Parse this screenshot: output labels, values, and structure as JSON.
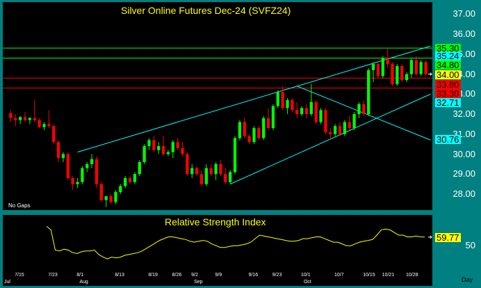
{
  "chart_data": [
    {
      "type": "candlestick",
      "title": "Silver Online Futures Dec-24 (SVFZ24)",
      "note": "No Gaps",
      "ylim": [
        27.2,
        37.6
      ],
      "y_ticks": [
        "37.00",
        "36.00",
        "35.00",
        "34.00",
        "33.00",
        "32.00",
        "31.00",
        "30.00",
        "29.00",
        "28.00"
      ],
      "x_ticks": [
        "7/15",
        "7/23",
        "8/1",
        "8/13",
        "8/19",
        "8/26",
        "9/2",
        "9/9",
        "9/16",
        "9/23",
        "10/1",
        "10/7",
        "10/15",
        "10/21",
        "10/28"
      ],
      "x_months": [
        "Jul",
        "Aug",
        "Sep",
        "Oct"
      ],
      "series": [
        {
          "type": "candles",
          "values": [
            {
              "o": 32.05,
              "h": 32.2,
              "l": 31.6,
              "c": 31.8
            },
            {
              "o": 31.8,
              "h": 32.0,
              "l": 31.4,
              "c": 31.7
            },
            {
              "o": 31.7,
              "h": 31.9,
              "l": 31.5,
              "c": 31.85
            },
            {
              "o": 31.85,
              "h": 32.1,
              "l": 31.6,
              "c": 31.7
            },
            {
              "o": 31.7,
              "h": 31.85,
              "l": 31.5,
              "c": 31.8
            },
            {
              "o": 31.8,
              "h": 32.7,
              "l": 31.6,
              "c": 31.7
            },
            {
              "o": 31.7,
              "h": 31.8,
              "l": 31.3,
              "c": 31.35
            },
            {
              "o": 31.35,
              "h": 31.6,
              "l": 31.2,
              "c": 31.5
            },
            {
              "o": 31.5,
              "h": 32.2,
              "l": 31.3,
              "c": 31.4
            },
            {
              "o": 31.4,
              "h": 31.5,
              "l": 30.5,
              "c": 30.6
            },
            {
              "o": 30.6,
              "h": 30.7,
              "l": 29.6,
              "c": 29.8
            },
            {
              "o": 29.8,
              "h": 30.1,
              "l": 29.6,
              "c": 30.0
            },
            {
              "o": 30.0,
              "h": 30.1,
              "l": 28.7,
              "c": 28.8
            },
            {
              "o": 28.8,
              "h": 28.9,
              "l": 28.2,
              "c": 28.5
            },
            {
              "o": 28.5,
              "h": 28.8,
              "l": 28.3,
              "c": 28.6
            },
            {
              "o": 28.6,
              "h": 29.4,
              "l": 28.5,
              "c": 29.3
            },
            {
              "o": 29.3,
              "h": 29.6,
              "l": 29.1,
              "c": 29.5
            },
            {
              "o": 29.5,
              "h": 30.0,
              "l": 29.3,
              "c": 29.75
            },
            {
              "o": 29.75,
              "h": 29.9,
              "l": 28.3,
              "c": 28.5
            },
            {
              "o": 28.5,
              "h": 28.6,
              "l": 27.6,
              "c": 27.7
            },
            {
              "o": 27.7,
              "h": 27.9,
              "l": 27.35,
              "c": 27.9
            },
            {
              "o": 27.9,
              "h": 28.0,
              "l": 27.5,
              "c": 27.6
            },
            {
              "o": 27.6,
              "h": 28.2,
              "l": 27.5,
              "c": 28.1
            },
            {
              "o": 28.1,
              "h": 28.5,
              "l": 28.0,
              "c": 28.4
            },
            {
              "o": 28.4,
              "h": 28.9,
              "l": 28.3,
              "c": 28.8
            },
            {
              "o": 28.8,
              "h": 28.9,
              "l": 28.5,
              "c": 28.6
            },
            {
              "o": 28.6,
              "h": 29.1,
              "l": 28.5,
              "c": 29.0
            },
            {
              "o": 29.0,
              "h": 29.7,
              "l": 28.9,
              "c": 29.6
            },
            {
              "o": 29.6,
              "h": 30.5,
              "l": 29.5,
              "c": 30.4
            },
            {
              "o": 30.4,
              "h": 30.8,
              "l": 30.2,
              "c": 30.7
            },
            {
              "o": 30.7,
              "h": 30.9,
              "l": 30.1,
              "c": 30.2
            },
            {
              "o": 30.2,
              "h": 30.6,
              "l": 30.0,
              "c": 30.4
            },
            {
              "o": 30.4,
              "h": 30.9,
              "l": 29.9,
              "c": 30.0
            },
            {
              "o": 30.0,
              "h": 30.2,
              "l": 29.9,
              "c": 30.1
            },
            {
              "o": 30.1,
              "h": 30.7,
              "l": 29.8,
              "c": 30.6
            },
            {
              "o": 30.6,
              "h": 30.8,
              "l": 30.2,
              "c": 30.3
            },
            {
              "o": 30.3,
              "h": 30.6,
              "l": 29.9,
              "c": 30.0
            },
            {
              "o": 30.0,
              "h": 30.1,
              "l": 28.9,
              "c": 29.0
            },
            {
              "o": 29.0,
              "h": 29.5,
              "l": 28.8,
              "c": 29.3
            },
            {
              "o": 29.3,
              "h": 29.4,
              "l": 28.9,
              "c": 29.0
            },
            {
              "o": 29.0,
              "h": 29.2,
              "l": 28.4,
              "c": 28.5
            },
            {
              "o": 28.5,
              "h": 29.5,
              "l": 28.4,
              "c": 29.3
            },
            {
              "o": 29.3,
              "h": 29.5,
              "l": 28.9,
              "c": 29.0
            },
            {
              "o": 29.0,
              "h": 29.6,
              "l": 28.7,
              "c": 29.5
            },
            {
              "o": 29.5,
              "h": 29.7,
              "l": 28.9,
              "c": 29.0
            },
            {
              "o": 29.0,
              "h": 29.3,
              "l": 28.5,
              "c": 28.6
            },
            {
              "o": 28.6,
              "h": 29.2,
              "l": 28.5,
              "c": 29.1
            },
            {
              "o": 29.1,
              "h": 30.9,
              "l": 29.0,
              "c": 30.8
            },
            {
              "o": 30.8,
              "h": 31.7,
              "l": 30.7,
              "c": 31.6
            },
            {
              "o": 31.6,
              "h": 31.8,
              "l": 30.8,
              "c": 30.9
            },
            {
              "o": 30.9,
              "h": 31.0,
              "l": 30.5,
              "c": 30.6
            },
            {
              "o": 30.6,
              "h": 31.4,
              "l": 30.5,
              "c": 31.3
            },
            {
              "o": 31.3,
              "h": 31.4,
              "l": 30.7,
              "c": 30.8
            },
            {
              "o": 30.8,
              "h": 31.9,
              "l": 30.7,
              "c": 31.8
            },
            {
              "o": 31.8,
              "h": 32.3,
              "l": 31.2,
              "c": 31.3
            },
            {
              "o": 31.3,
              "h": 32.5,
              "l": 31.2,
              "c": 32.4
            },
            {
              "o": 32.4,
              "h": 33.2,
              "l": 32.3,
              "c": 33.1
            },
            {
              "o": 33.1,
              "h": 33.4,
              "l": 32.2,
              "c": 32.3
            },
            {
              "o": 32.3,
              "h": 32.8,
              "l": 32.0,
              "c": 32.7
            },
            {
              "o": 32.7,
              "h": 32.8,
              "l": 32.1,
              "c": 32.2
            },
            {
              "o": 32.2,
              "h": 32.6,
              "l": 31.8,
              "c": 32.0
            },
            {
              "o": 32.0,
              "h": 32.4,
              "l": 31.9,
              "c": 32.3
            },
            {
              "o": 32.3,
              "h": 32.5,
              "l": 31.8,
              "c": 32.0
            },
            {
              "o": 32.0,
              "h": 33.5,
              "l": 31.9,
              "c": 32.6
            },
            {
              "o": 32.6,
              "h": 32.7,
              "l": 31.5,
              "c": 31.6
            },
            {
              "o": 31.6,
              "h": 32.3,
              "l": 31.5,
              "c": 32.2
            },
            {
              "o": 32.2,
              "h": 32.3,
              "l": 31.0,
              "c": 31.1
            },
            {
              "o": 31.1,
              "h": 31.3,
              "l": 30.7,
              "c": 31.0
            },
            {
              "o": 31.0,
              "h": 31.5,
              "l": 30.9,
              "c": 31.4
            },
            {
              "o": 31.4,
              "h": 31.6,
              "l": 30.9,
              "c": 31.0
            },
            {
              "o": 31.0,
              "h": 31.7,
              "l": 30.9,
              "c": 31.6
            },
            {
              "o": 31.6,
              "h": 31.9,
              "l": 31.2,
              "c": 31.3
            },
            {
              "o": 31.3,
              "h": 32.1,
              "l": 31.2,
              "c": 32.0
            },
            {
              "o": 32.0,
              "h": 32.6,
              "l": 31.8,
              "c": 32.5
            },
            {
              "o": 32.5,
              "h": 32.7,
              "l": 31.9,
              "c": 32.0
            },
            {
              "o": 32.0,
              "h": 34.3,
              "l": 31.9,
              "c": 34.2
            },
            {
              "o": 34.2,
              "h": 34.6,
              "l": 33.6,
              "c": 34.5
            },
            {
              "o": 34.5,
              "h": 34.7,
              "l": 33.8,
              "c": 33.9
            },
            {
              "o": 33.9,
              "h": 34.9,
              "l": 33.8,
              "c": 34.8
            },
            {
              "o": 34.8,
              "h": 35.3,
              "l": 34.3,
              "c": 34.5
            },
            {
              "o": 34.5,
              "h": 34.6,
              "l": 33.4,
              "c": 33.5
            },
            {
              "o": 33.5,
              "h": 34.5,
              "l": 33.4,
              "c": 34.4
            },
            {
              "o": 34.4,
              "h": 34.5,
              "l": 33.6,
              "c": 33.7
            },
            {
              "o": 33.7,
              "h": 34.1,
              "l": 33.6,
              "c": 34.0
            },
            {
              "o": 34.0,
              "h": 34.8,
              "l": 33.8,
              "c": 34.7
            },
            {
              "o": 34.7,
              "h": 34.9,
              "l": 33.9,
              "c": 34.0
            },
            {
              "o": 34.0,
              "h": 34.7,
              "l": 33.9,
              "c": 34.6
            },
            {
              "o": 34.6,
              "h": 34.7,
              "l": 33.9,
              "c": 34.0
            }
          ]
        },
        {
          "type": "hline",
          "value": 35.3,
          "color": "#00ff00"
        },
        {
          "type": "hline",
          "value": 34.8,
          "color": "#00ff00"
        },
        {
          "type": "hline",
          "value": 33.8,
          "color": "#ff0000"
        },
        {
          "type": "hline",
          "value": 33.3,
          "color": "#ff0000"
        }
      ],
      "trendlines": [
        {
          "from": [
            14,
            30.1
          ],
          "to": [
            88,
            35.4
          ],
          "color": "#00ffff"
        },
        {
          "from": [
            46,
            28.5
          ],
          "to": [
            88,
            33.0
          ],
          "color": "#00ffff"
        },
        {
          "from": [
            60,
            33.4
          ],
          "to": [
            88,
            30.7
          ],
          "color": "#00ffff"
        }
      ],
      "price_flags": [
        {
          "label": "35.30",
          "value": 35.3,
          "bg": "#00ff00",
          "fg": "#000000"
        },
        {
          "label": "35.24",
          "value": 34.93,
          "bg": "#00ffff",
          "fg": "#000000"
        },
        {
          "label": "34.80",
          "value": 34.46,
          "bg": "#00ff00",
          "fg": "#000000"
        },
        {
          "label": "34.00",
          "value": 33.97,
          "bg": "#ffff00",
          "fg": "#000000"
        },
        {
          "label": "33.80",
          "value": 33.49,
          "bg": "#ff0000",
          "fg": "#000000"
        },
        {
          "label": "33.30",
          "value": 33.03,
          "bg": "#ff0000",
          "fg": "#000000"
        },
        {
          "label": "32.71",
          "value": 32.58,
          "bg": "#00ffff",
          "fg": "#000000"
        },
        {
          "label": "30.76",
          "value": 30.76,
          "bg": "#00ffff",
          "fg": "#000000"
        }
      ],
      "colors": {
        "up": "#00ff00",
        "down": "#ff0000",
        "axis": "#ffffff",
        "title": "#ffff00"
      }
    },
    {
      "type": "line",
      "title": "Relative Strength Index",
      "ylim": [
        20,
        85
      ],
      "y_ticks": [
        "50"
      ],
      "last_value": "59.77",
      "series": [
        {
          "values": [
            72,
            68,
            45,
            44,
            46,
            45,
            42,
            41,
            43,
            44,
            44,
            45,
            40,
            37,
            35,
            37,
            36,
            37,
            39,
            40,
            41,
            42,
            44,
            47,
            50,
            53,
            56,
            58,
            60,
            60,
            59,
            58,
            57,
            55,
            54,
            55,
            56,
            55,
            52,
            50,
            48,
            48,
            49,
            50,
            50,
            51,
            52,
            54,
            58,
            62,
            61,
            60,
            59,
            58,
            57,
            56,
            55,
            55,
            56,
            58,
            58,
            59,
            60,
            60,
            58,
            56,
            54,
            54,
            52,
            50,
            50,
            52,
            54,
            55,
            56,
            57,
            62,
            68,
            69,
            68,
            65,
            62,
            62,
            60,
            60,
            61,
            60,
            59.77
          ],
          "color": "#ffff00"
        }
      ]
    }
  ],
  "period_label": "Day"
}
